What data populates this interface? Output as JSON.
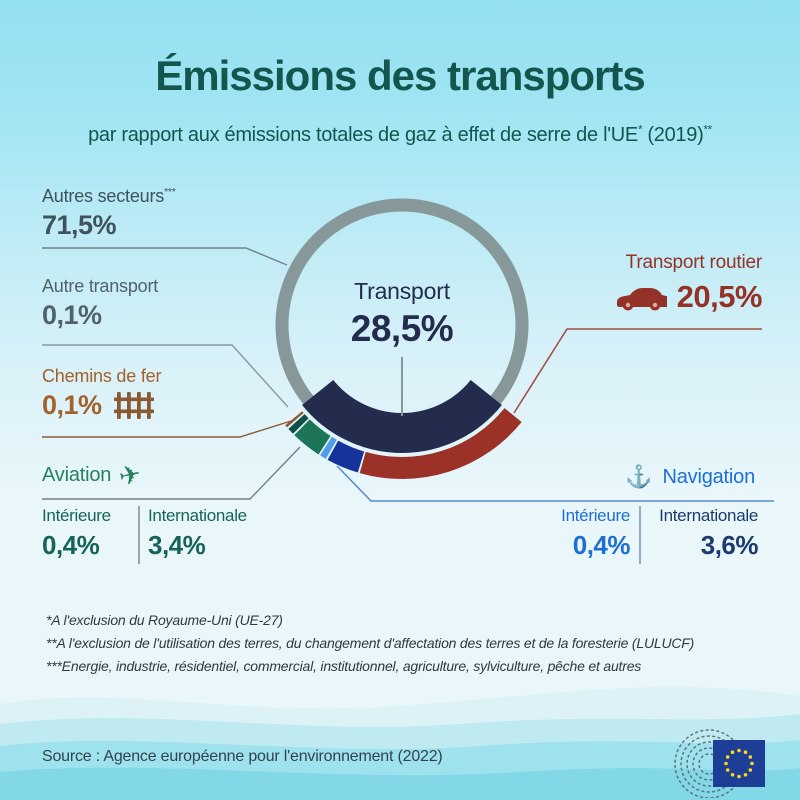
{
  "header": {
    "title": "Émissions des transports",
    "subtitle_main": "par rapport aux émissions totales de gaz à effet de serre de l'UE",
    "subtitle_sup1": "*",
    "subtitle_mid": " (2019)",
    "subtitle_sup2": "**"
  },
  "center": {
    "label": "Transport",
    "value": "28,5%"
  },
  "sectors": {
    "autres": {
      "label": "Autres secteurs",
      "sup": "***",
      "value": "71,5%"
    },
    "autre_transport": {
      "label": "Autre transport",
      "value": "0,1%"
    },
    "chemins": {
      "label": "Chemins de fer",
      "value": "0,1%"
    },
    "aviation": {
      "label": "Aviation",
      "col1_label": "Intérieure",
      "col1_value": "0,4%",
      "col2_label": "Internationale",
      "col2_value": "3,4%"
    },
    "routier": {
      "label": "Transport routier",
      "value": "20,5%"
    },
    "navigation": {
      "label": "Navigation",
      "col1_label": "Intérieure",
      "col1_value": "0,4%",
      "col2_label": "Internationale",
      "col2_value": "3,6%"
    }
  },
  "footnotes": {
    "f1": "*A l'exclusion du Royaume-Uni (UE-27)",
    "f2": "**A l'exclusion de l'utilisation des terres, du changement d'affectation des terres et de la foresterie (LULUCF)",
    "f3": "***Energie, industrie, résidentiel, commercial, institutionnel, agriculture, sylviculture, pêche et autres"
  },
  "source": "Source : Agence européenne pour l'environnement (2022)",
  "icons": {
    "plane_glyph": "✈",
    "anchor_glyph": "⚓",
    "car": "car-icon",
    "railway": "railway-track-icon",
    "logo": "european-parliament-logo"
  },
  "palette": {
    "background_top": "#92e0f2",
    "background_mid": "#e9f7fb",
    "title_teal": "#14564e",
    "ring_gray": "#87989b",
    "transport_navy": "#232c4d",
    "road_red": "#9c3128",
    "navigation_blue": "#16339c",
    "navigation_light_blue": "#4f9de8",
    "aviation_green": "#1c7557",
    "aviation_dark_teal": "#0e4f43",
    "rail_brown": "#8a5a33",
    "other_white": "#eef2f1",
    "eu_flag_blue": "#1c3e96",
    "eu_star_yellow": "#ffd617"
  },
  "chart_data": {
    "type": "donut",
    "title": "Émissions des transports par rapport aux émissions totales de gaz à effet de serre de l'UE (2019)",
    "center_label": "Transport",
    "center_value_pct": 28.5,
    "legend_position": "callout-labels",
    "series": [
      {
        "name": "Autres secteurs",
        "value": 71.5,
        "color": "#87989b"
      },
      {
        "name": "Transport",
        "value": 28.5,
        "color": "#232c4d"
      }
    ],
    "transport_breakdown": [
      {
        "name": "Autre transport",
        "value": 0.1,
        "color": "#eef2f1"
      },
      {
        "name": "Chemins de fer",
        "value": 0.1,
        "color": "#8a5a33"
      },
      {
        "name": "Aviation intérieure",
        "value": 0.4,
        "color": "#0e4f43"
      },
      {
        "name": "Aviation internationale",
        "value": 3.4,
        "color": "#1c7557"
      },
      {
        "name": "Navigation intérieure",
        "value": 0.4,
        "color": "#4f9de8"
      },
      {
        "name": "Navigation internationale",
        "value": 3.6,
        "color": "#16339c"
      },
      {
        "name": "Transport routier",
        "value": 20.5,
        "color": "#9c3128"
      }
    ]
  }
}
